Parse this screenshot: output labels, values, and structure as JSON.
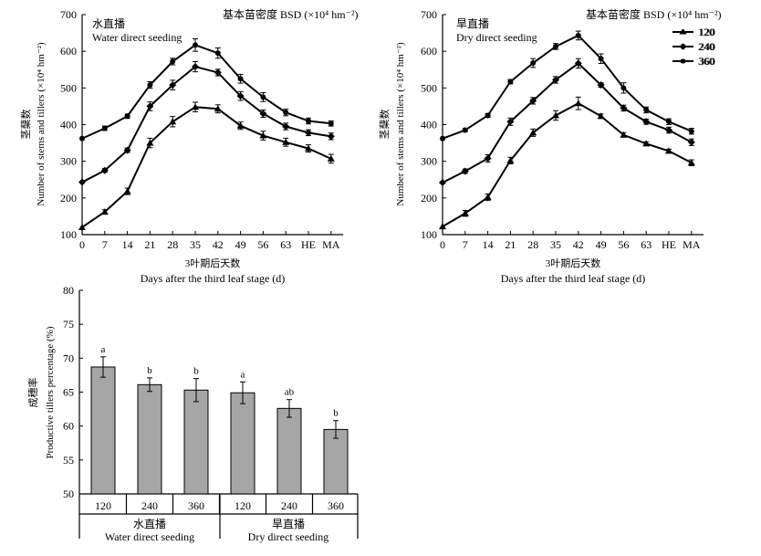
{
  "chart_data": [
    {
      "type": "line",
      "panel_label_cn": "水直播",
      "panel_label_en": "Water direct seeding",
      "legend_title": "基本苗密度 BSD (×10⁴ hm⁻²)",
      "ylabel_cn": "茎蘖数",
      "ylabel": "Number of stems and tillers (×10⁴ hm⁻²)",
      "xlabel_cn": "3叶期后天数",
      "xlabel": "Days after the third leaf stage (d)",
      "categories": [
        "0",
        "7",
        "14",
        "21",
        "28",
        "35",
        "42",
        "49",
        "56",
        "63",
        "HE",
        "MA"
      ],
      "ylim": [
        100,
        700
      ],
      "yticks": [
        "100",
        "200",
        "300",
        "400",
        "500",
        "600",
        "700"
      ],
      "series": [
        {
          "name": "120",
          "marker": "triangle",
          "values": [
            120,
            162,
            218,
            350,
            408,
            448,
            443,
            397,
            370,
            352,
            335,
            307
          ],
          "errors": [
            0,
            6,
            9,
            13,
            14,
            13,
            11,
            10,
            12,
            11,
            10,
            12
          ]
        },
        {
          "name": "240",
          "marker": "diamond",
          "values": [
            243,
            275,
            330,
            450,
            508,
            558,
            542,
            478,
            430,
            395,
            378,
            368
          ],
          "errors": [
            0,
            5,
            6,
            12,
            13,
            14,
            9,
            12,
            10,
            9,
            8,
            9
          ]
        },
        {
          "name": "360",
          "marker": "circle",
          "values": [
            362,
            390,
            423,
            508,
            572,
            617,
            595,
            525,
            475,
            433,
            410,
            403
          ],
          "errors": [
            0,
            6,
            6,
            9,
            9,
            17,
            14,
            12,
            12,
            9,
            8,
            7
          ]
        }
      ]
    },
    {
      "type": "line",
      "panel_label_cn": "旱直播",
      "panel_label_en": "Dry direct seeding",
      "legend_title": "基本苗密度 BSD (×10⁴ hm⁻²)",
      "ylabel_cn": "茎蘖数",
      "ylabel": "Number of stems and tillers (×10⁴ hm⁻²)",
      "xlabel_cn": "3叶期后天数",
      "xlabel": "Days after the third leaf stage (d)",
      "categories": [
        "0",
        "7",
        "14",
        "21",
        "28",
        "35",
        "42",
        "49",
        "56",
        "63",
        "HE",
        "MA"
      ],
      "ylim": [
        100,
        700
      ],
      "yticks": [
        "100",
        "200",
        "300",
        "400",
        "500",
        "600",
        "700"
      ],
      "series": [
        {
          "name": "120",
          "marker": "triangle",
          "values": [
            122,
            158,
            202,
            302,
            378,
            425,
            458,
            423,
            372,
            348,
            328,
            296
          ],
          "errors": [
            0,
            8,
            9,
            9,
            10,
            13,
            17,
            6,
            6,
            5,
            5,
            8
          ]
        },
        {
          "name": "240",
          "marker": "diamond",
          "values": [
            242,
            273,
            308,
            408,
            465,
            522,
            567,
            508,
            445,
            408,
            385,
            352
          ],
          "errors": [
            0,
            6,
            10,
            10,
            9,
            9,
            13,
            6,
            8,
            7,
            8,
            9
          ]
        },
        {
          "name": "360",
          "marker": "circle",
          "values": [
            362,
            385,
            425,
            517,
            568,
            613,
            643,
            580,
            500,
            440,
            408,
            382
          ],
          "errors": [
            0,
            4,
            5,
            6,
            12,
            8,
            12,
            13,
            14,
            8,
            8,
            8
          ]
        }
      ]
    },
    {
      "type": "bar",
      "ylabel_cn": "成穗率",
      "ylabel": "Productive tillers percentage (%)",
      "categories": [
        "120",
        "240",
        "360",
        "120",
        "240",
        "360"
      ],
      "values": [
        68.7,
        66.1,
        65.3,
        64.9,
        62.6,
        59.5
      ],
      "errors": [
        1.5,
        1.0,
        1.7,
        1.6,
        1.3,
        1.3
      ],
      "significance": [
        "a",
        "b",
        "b",
        "a",
        "ab",
        "b"
      ],
      "groups": [
        {
          "label_cn": "水直播",
          "label_en": "Water direct seeding"
        },
        {
          "label_cn": "旱直播",
          "label_en": "Dry direct seeding"
        }
      ],
      "ylim": [
        50,
        80
      ],
      "yticks": [
        "50",
        "55",
        "60",
        "65",
        "70",
        "75",
        "80"
      ]
    }
  ]
}
